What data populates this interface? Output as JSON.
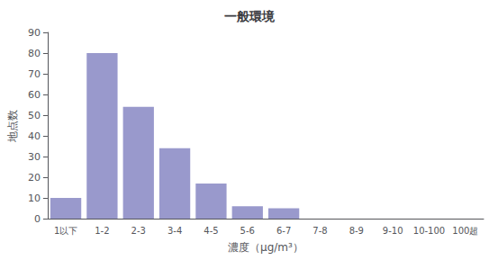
{
  "chart_data": {
    "type": "bar",
    "title": "一般環境",
    "categories": [
      "1以下",
      "1-2",
      "2-3",
      "3-4",
      "4-5",
      "5-6",
      "6-7",
      "7-8",
      "8-9",
      "9-10",
      "10-100",
      "100超"
    ],
    "values": [
      10,
      80,
      54,
      34,
      17,
      6,
      5,
      0,
      0,
      0,
      0,
      0
    ],
    "color": "#9999cc",
    "xlabel": "濃度（μg/m³）",
    "ylabel": "地点数",
    "ylim": [
      0,
      90
    ],
    "yticks": [
      0,
      10,
      20,
      30,
      40,
      50,
      60,
      70,
      80,
      90
    ],
    "grid": false
  }
}
